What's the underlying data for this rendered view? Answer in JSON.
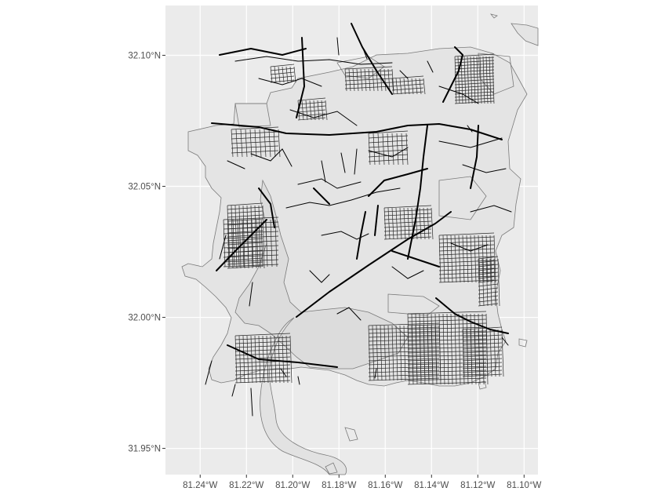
{
  "map": {
    "type": "street-map",
    "panel_background": "#ebebeb",
    "grid_color": "#ffffff",
    "road_color": "#000000",
    "outline_color": "#7a7a7a",
    "x_range_deg": [
      -81.255,
      -81.094
    ],
    "y_range_deg": [
      31.94,
      32.119
    ],
    "x_ticks": [
      {
        "value": -81.24,
        "label": "81.24°W"
      },
      {
        "value": -81.22,
        "label": "81.22°W"
      },
      {
        "value": -81.2,
        "label": "81.20°W"
      },
      {
        "value": -81.18,
        "label": "81.18°W"
      },
      {
        "value": -81.16,
        "label": "81.16°W"
      },
      {
        "value": -81.14,
        "label": "81.14°W"
      },
      {
        "value": -81.12,
        "label": "81.12°W"
      },
      {
        "value": -81.1,
        "label": "81.10°W"
      }
    ],
    "y_ticks": [
      {
        "value": 32.1,
        "label": "32.10°N"
      },
      {
        "value": 32.05,
        "label": "32.05°N"
      },
      {
        "value": 32.0,
        "label": "32.00°N"
      },
      {
        "value": 31.95,
        "label": "31.95°N"
      }
    ]
  }
}
